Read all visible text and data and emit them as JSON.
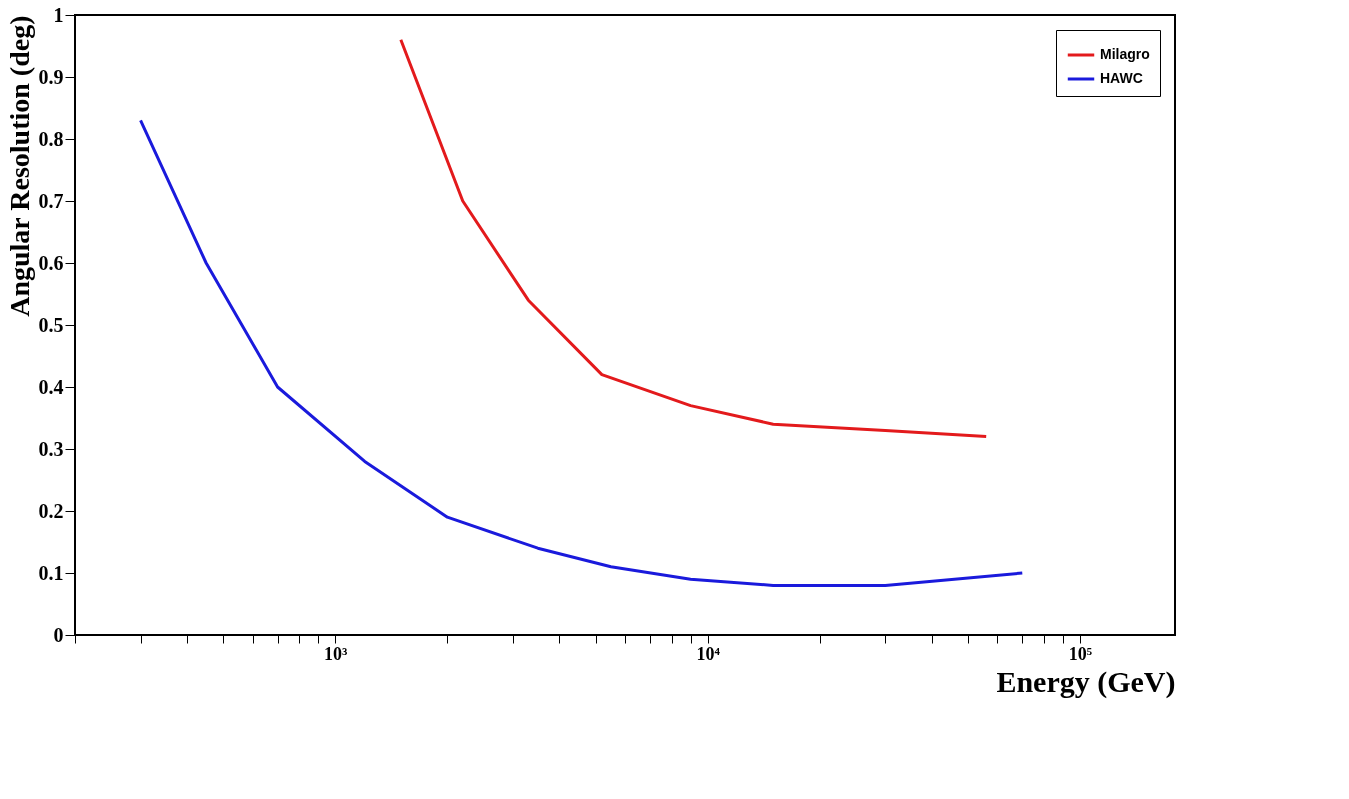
{
  "chart_data": {
    "type": "line",
    "xlabel": "Energy (GeV)",
    "ylabel": "Angular Resolution (deg)",
    "log": "x",
    "xlim": [
      200,
      180000
    ],
    "ylim": [
      0,
      1
    ],
    "xticks": [
      {
        "value": 200,
        "label": null
      },
      {
        "value": 300,
        "label": null
      },
      {
        "value": 400,
        "label": null
      },
      {
        "value": 500,
        "label": null
      },
      {
        "value": 600,
        "label": null
      },
      {
        "value": 700,
        "label": null
      },
      {
        "value": 800,
        "label": null
      },
      {
        "value": 900,
        "label": null
      },
      {
        "value": 1000,
        "label": "10³"
      },
      {
        "value": 2000,
        "label": null
      },
      {
        "value": 3000,
        "label": null
      },
      {
        "value": 4000,
        "label": null
      },
      {
        "value": 5000,
        "label": null
      },
      {
        "value": 6000,
        "label": null
      },
      {
        "value": 7000,
        "label": null
      },
      {
        "value": 8000,
        "label": null
      },
      {
        "value": 9000,
        "label": null
      },
      {
        "value": 10000,
        "label": "10⁴"
      },
      {
        "value": 20000,
        "label": null
      },
      {
        "value": 30000,
        "label": null
      },
      {
        "value": 40000,
        "label": null
      },
      {
        "value": 50000,
        "label": null
      },
      {
        "value": 60000,
        "label": null
      },
      {
        "value": 70000,
        "label": null
      },
      {
        "value": 80000,
        "label": null
      },
      {
        "value": 90000,
        "label": null
      },
      {
        "value": 100000,
        "label": "10⁵"
      }
    ],
    "yticks": [
      0,
      0.1,
      0.2,
      0.3,
      0.4,
      0.5,
      0.6,
      0.7,
      0.8,
      0.9,
      1
    ],
    "grid": false,
    "legend": "top right",
    "marker": "none",
    "line_style": "solid",
    "series": [
      {
        "name": "Milagro",
        "color": "#e31a1c",
        "x": [
          1500,
          2200,
          3300,
          5200,
          9000,
          15000,
          30000,
          56000
        ],
        "values": [
          0.96,
          0.7,
          0.54,
          0.42,
          0.37,
          0.34,
          0.33,
          0.32
        ]
      },
      {
        "name": "HAWC",
        "color": "#1a1adc",
        "x": [
          300,
          450,
          700,
          1200,
          2000,
          3500,
          5500,
          9000,
          15000,
          30000,
          70000
        ],
        "values": [
          0.83,
          0.6,
          0.4,
          0.28,
          0.19,
          0.14,
          0.11,
          0.09,
          0.08,
          0.08,
          0.1
        ]
      }
    ]
  }
}
